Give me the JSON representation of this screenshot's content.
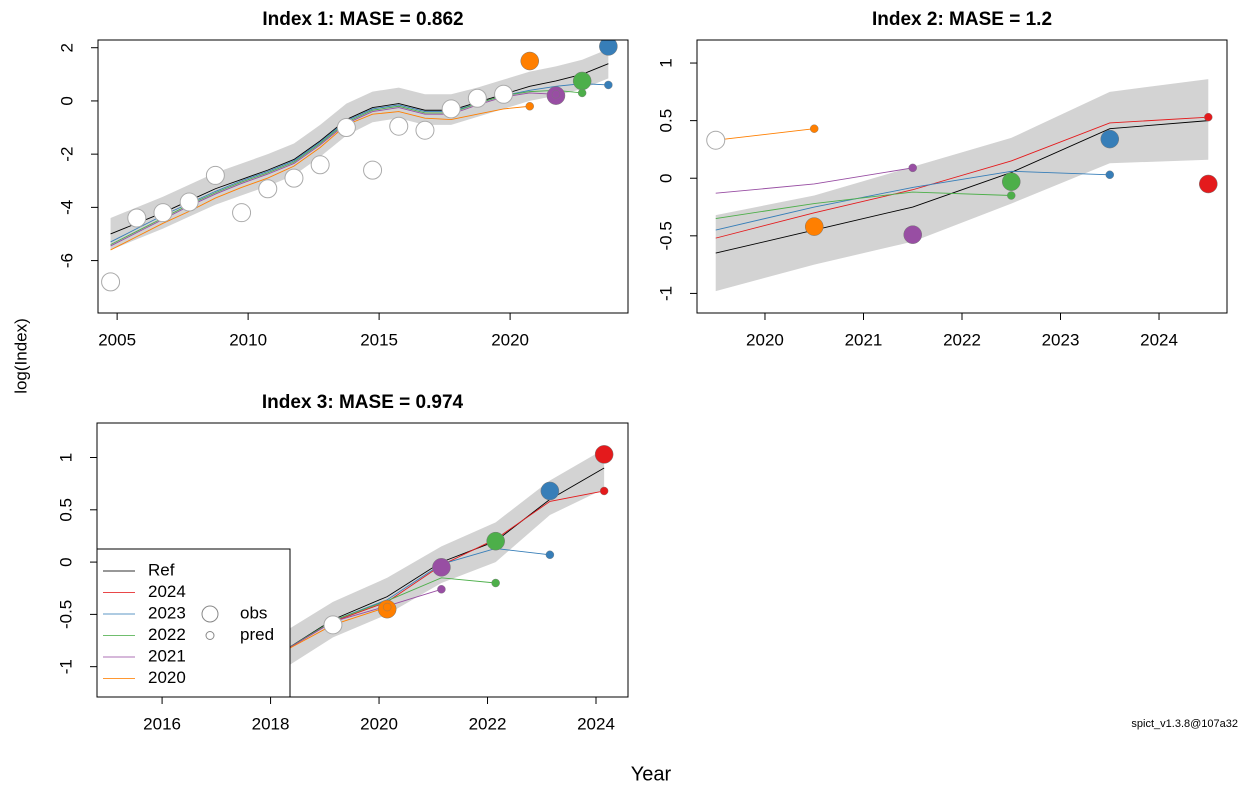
{
  "y_label": "log(Index)",
  "x_label": "Year",
  "footer": "spict_v1.3.8@107a32",
  "chart_data": [
    {
      "type": "line",
      "title": "Index 1: MASE = 0.862",
      "xlim": [
        2004.27,
        2024.5
      ],
      "ylim": [
        -7.97,
        2.29
      ],
      "xticks": [
        2005,
        2010,
        2015,
        2020
      ],
      "yticks": [
        -6,
        -4,
        -2,
        0,
        2
      ],
      "x": [
        2004.75,
        2005.75,
        2006.75,
        2007.75,
        2008.75,
        2009.75,
        2010.75,
        2011.75,
        2012.75,
        2013.75,
        2014.75,
        2015.75,
        2016.75,
        2017.75,
        2018.75,
        2019.75,
        2020.75,
        2021.75,
        2022.75,
        2023.75
      ],
      "band": {
        "color": "#d3d3d3",
        "lower": [
          -5.6,
          -5.2,
          -4.8,
          -4.35,
          -3.9,
          -3.55,
          -3.2,
          -2.8,
          -2.1,
          -1.3,
          -0.8,
          -0.65,
          -0.9,
          -0.9,
          -0.6,
          -0.3,
          0.0,
          0.2,
          0.45,
          0.85
        ],
        "upper": [
          -4.4,
          -4.0,
          -3.6,
          -3.15,
          -2.7,
          -2.35,
          -2.0,
          -1.6,
          -0.9,
          -0.1,
          0.35,
          0.5,
          0.25,
          0.25,
          0.5,
          0.8,
          1.1,
          1.3,
          1.55,
          1.95
        ]
      },
      "obs": {
        "values": [
          -6.8,
          -4.4,
          -4.2,
          -3.8,
          -2.8,
          -4.2,
          -3.3,
          -2.9,
          -2.4,
          -1.0,
          -2.6,
          -0.95,
          -1.1,
          -0.3,
          0.1,
          0.25,
          null,
          null,
          null,
          null
        ]
      },
      "series": [
        {
          "name": "Ref",
          "color": "#000000",
          "values": [
            -5.0,
            -4.6,
            -4.2,
            -3.75,
            -3.3,
            -2.95,
            -2.6,
            -2.2,
            -1.5,
            -0.7,
            -0.25,
            -0.1,
            -0.35,
            -0.35,
            -0.05,
            0.25,
            0.55,
            0.75,
            1.0,
            1.4
          ]
        },
        {
          "name": "2023",
          "color": "#377EB8",
          "values": [
            -5.3,
            -4.8,
            -4.3,
            -3.85,
            -3.4,
            -3.0,
            -2.65,
            -2.25,
            -1.55,
            -0.75,
            -0.3,
            -0.15,
            -0.4,
            -0.4,
            -0.1,
            0.2,
            0.4,
            0.55,
            0.65,
            0.6
          ],
          "obs_value": 2.05
        },
        {
          "name": "2022",
          "color": "#4DAF4A",
          "values": [
            -5.4,
            -4.9,
            -4.4,
            -3.9,
            -3.45,
            -3.05,
            -2.7,
            -2.3,
            -1.6,
            -0.8,
            -0.35,
            -0.2,
            -0.45,
            -0.45,
            -0.1,
            0.2,
            0.35,
            0.4,
            0.3,
            null
          ],
          "obs_value": 0.75
        },
        {
          "name": "2021",
          "color": "#984EA3",
          "values": [
            -5.45,
            -4.95,
            -4.45,
            -3.95,
            -3.5,
            -3.1,
            -2.75,
            -2.35,
            -1.65,
            -0.85,
            -0.4,
            -0.25,
            -0.5,
            -0.5,
            -0.15,
            0.15,
            0.3,
            0.25,
            null,
            null
          ],
          "obs_value": 0.2
        },
        {
          "name": "2020",
          "color": "#FF7F00",
          "values": [
            -5.6,
            -5.1,
            -4.6,
            -4.15,
            -3.65,
            -3.25,
            -2.9,
            -2.45,
            -1.75,
            -0.9,
            -0.5,
            -0.4,
            -0.65,
            -0.7,
            -0.5,
            -0.3,
            -0.2,
            null,
            null,
            null
          ],
          "obs_value": 1.5
        }
      ]
    },
    {
      "type": "line",
      "title": "Index 2: MASE = 1.2",
      "xlim": [
        2019.31,
        2024.69
      ],
      "ylim": [
        -1.17,
        1.2
      ],
      "xticks": [
        2020,
        2021,
        2022,
        2023,
        2024
      ],
      "yticks": [
        -1.0,
        -0.5,
        0.0,
        0.5,
        1.0
      ],
      "x": [
        2019.5,
        2020.5,
        2021.5,
        2022.5,
        2023.5,
        2024.5
      ],
      "band": {
        "color": "#d3d3d3",
        "lower": [
          -0.98,
          -0.75,
          -0.55,
          -0.22,
          0.13,
          0.16
        ],
        "upper": [
          -0.32,
          -0.15,
          0.1,
          0.35,
          0.75,
          0.86
        ]
      },
      "obs": {
        "values": [
          0.33,
          null,
          null,
          null,
          null,
          null
        ]
      },
      "series": [
        {
          "name": "Ref",
          "color": "#000000",
          "values": [
            -0.65,
            -0.45,
            -0.25,
            0.05,
            0.43,
            0.5
          ]
        },
        {
          "name": "2024",
          "color": "#E41A1C",
          "values": [
            -0.52,
            -0.3,
            -0.1,
            0.15,
            0.48,
            0.53
          ],
          "obs_value": -0.05
        },
        {
          "name": "2023",
          "color": "#377EB8",
          "values": [
            -0.45,
            -0.25,
            -0.08,
            0.06,
            0.03,
            null
          ],
          "obs_value": 0.34
        },
        {
          "name": "2022",
          "color": "#4DAF4A",
          "values": [
            -0.35,
            -0.22,
            -0.12,
            -0.15,
            null,
            null
          ],
          "obs_value": -0.03
        },
        {
          "name": "2021",
          "color": "#984EA3",
          "values": [
            -0.13,
            -0.05,
            0.09,
            null,
            null,
            null
          ],
          "obs_value": -0.49
        },
        {
          "name": "2020",
          "color": "#FF7F00",
          "values": [
            0.33,
            0.43,
            null,
            null,
            null,
            null
          ],
          "obs_value": -0.42
        }
      ]
    },
    {
      "type": "line",
      "title": "Index 3: MASE = 0.974",
      "xlim": [
        2014.8,
        2024.59
      ],
      "ylim": [
        -1.29,
        1.33
      ],
      "xticks": [
        2016,
        2018,
        2020,
        2022,
        2024
      ],
      "yticks": [
        -1.0,
        -0.5,
        0.0,
        0.5,
        1.0
      ],
      "x": [
        2018.15,
        2019.15,
        2020.15,
        2021.15,
        2022.15,
        2023.15,
        2024.15
      ],
      "band": {
        "color": "#d3d3d3",
        "lower": [
          -1.05,
          -0.72,
          -0.5,
          -0.2,
          0.0,
          0.45,
          0.7
        ],
        "upper": [
          -0.7,
          -0.38,
          -0.15,
          0.15,
          0.38,
          0.78,
          1.08
        ]
      },
      "obs": {
        "values": [
          null,
          -0.6,
          null,
          null,
          null,
          null,
          null
        ]
      },
      "series": [
        {
          "name": "Ref",
          "color": "#000000",
          "values": [
            -0.88,
            -0.55,
            -0.33,
            0.0,
            0.2,
            0.6,
            0.9
          ]
        },
        {
          "name": "2024",
          "color": "#E41A1C",
          "values": [
            -0.88,
            -0.57,
            -0.38,
            -0.03,
            0.22,
            0.58,
            0.68
          ],
          "obs_value": 1.03
        },
        {
          "name": "2023",
          "color": "#377EB8",
          "values": [
            -0.88,
            -0.56,
            -0.36,
            -0.02,
            0.13,
            0.07,
            null
          ],
          "obs_value": 0.68
        },
        {
          "name": "2022",
          "color": "#4DAF4A",
          "values": [
            -0.88,
            -0.56,
            -0.37,
            -0.15,
            -0.2,
            null,
            null
          ],
          "obs_value": 0.2
        },
        {
          "name": "2021",
          "color": "#984EA3",
          "values": [
            -0.88,
            -0.57,
            -0.42,
            -0.26,
            null,
            null,
            null
          ],
          "obs_value": -0.05
        },
        {
          "name": "2020",
          "color": "#FF7F00",
          "values": [
            -0.88,
            -0.6,
            -0.43,
            null,
            null,
            null,
            null
          ],
          "obs_value": -0.45
        }
      ],
      "legend": "bottomleft",
      "point_labels": [
        "obs",
        "pred"
      ]
    }
  ]
}
